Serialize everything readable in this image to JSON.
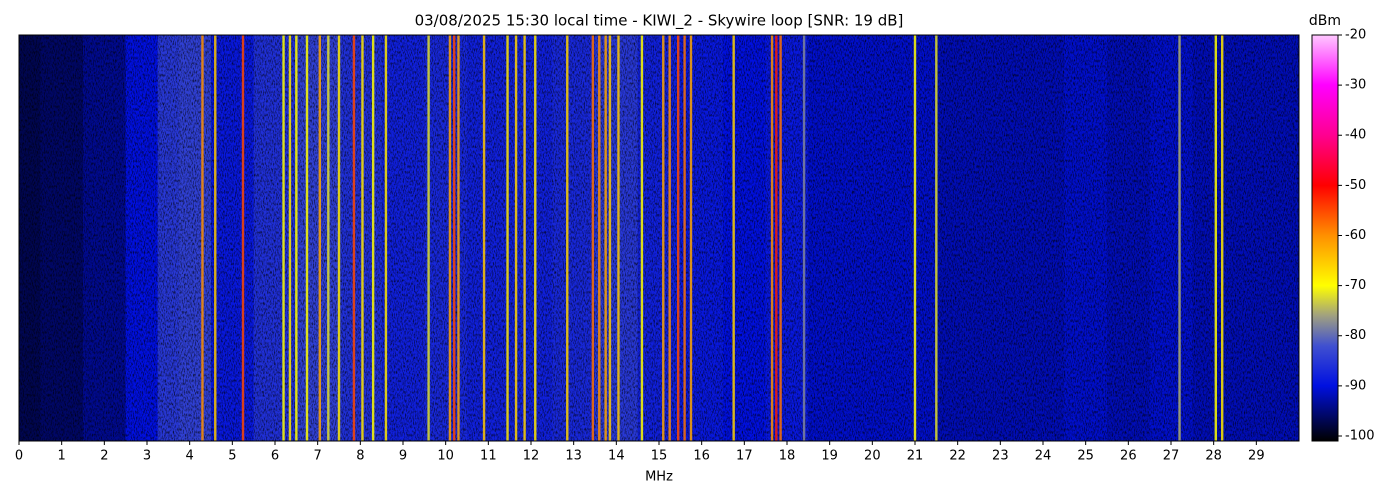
{
  "chart_data": {
    "type": "waterfall",
    "title": "03/08/2025 15:30 local time - KIWI_2 - Skywire loop [SNR: 19 dB]",
    "xlabel": "MHz",
    "colorbar_label": "dBm",
    "xlim": [
      0,
      30
    ],
    "xticks": [
      0,
      1,
      2,
      3,
      4,
      5,
      6,
      7,
      8,
      9,
      10,
      11,
      12,
      13,
      14,
      15,
      16,
      17,
      18,
      19,
      20,
      21,
      22,
      23,
      24,
      25,
      26,
      27,
      28,
      29
    ],
    "clim": [
      -101,
      -20
    ],
    "cticks": [
      -100,
      -90,
      -80,
      -70,
      -60,
      -50,
      -40,
      -30,
      -20
    ],
    "colormap": [
      {
        "value": -101,
        "color": "#000000"
      },
      {
        "value": -90,
        "color": "#0010e0"
      },
      {
        "value": -82,
        "color": "#4050d0"
      },
      {
        "value": -76,
        "color": "#a0a080"
      },
      {
        "value": -70,
        "color": "#ffff00"
      },
      {
        "value": -60,
        "color": "#ff9000"
      },
      {
        "value": -50,
        "color": "#ff0000"
      },
      {
        "value": -40,
        "color": "#ff0090"
      },
      {
        "value": -30,
        "color": "#ff00ff"
      },
      {
        "value": -20,
        "color": "#ffc8ff"
      }
    ],
    "noise_floor": {
      "x": [
        0,
        1,
        2,
        3,
        3.5,
        4,
        5,
        6,
        7,
        8,
        9,
        10,
        11,
        12,
        13,
        14,
        15,
        16,
        17,
        18,
        19,
        20,
        21,
        22,
        23,
        24,
        25,
        26,
        27,
        28,
        29,
        30
      ],
      "values": [
        -97,
        -96,
        -94,
        -90,
        -85,
        -84,
        -89,
        -86,
        -84,
        -86,
        -88,
        -87,
        -88,
        -88,
        -87,
        -85,
        -88,
        -89,
        -90,
        -89,
        -91,
        -91,
        -91,
        -92,
        -92,
        -92,
        -91,
        -92,
        -91,
        -92,
        -92,
        -92
      ]
    },
    "signals": {
      "x": [
        4.3,
        4.6,
        5.25,
        6.2,
        6.35,
        6.5,
        6.75,
        7.05,
        7.25,
        7.5,
        7.85,
        8.05,
        8.3,
        8.6,
        9.6,
        10.1,
        10.2,
        10.3,
        10.9,
        11.45,
        11.65,
        11.85,
        12.1,
        12.85,
        13.45,
        13.6,
        13.75,
        13.85,
        14.05,
        14.6,
        15.1,
        15.25,
        15.45,
        15.6,
        15.75,
        16.75,
        17.65,
        17.75,
        17.85,
        18.4,
        21.0,
        21.5,
        27.2,
        28.05,
        28.2
      ],
      "values": [
        -60,
        -65,
        -55,
        -70,
        -68,
        -70,
        -70,
        -62,
        -72,
        -68,
        -55,
        -68,
        -70,
        -68,
        -72,
        -62,
        -55,
        -62,
        -65,
        -68,
        -66,
        -66,
        -68,
        -66,
        -58,
        -60,
        -62,
        -65,
        -65,
        -70,
        -62,
        -60,
        -55,
        -58,
        -62,
        -66,
        -60,
        -52,
        -58,
        -78,
        -70,
        -72,
        -75,
        -70,
        -68
      ]
    }
  }
}
